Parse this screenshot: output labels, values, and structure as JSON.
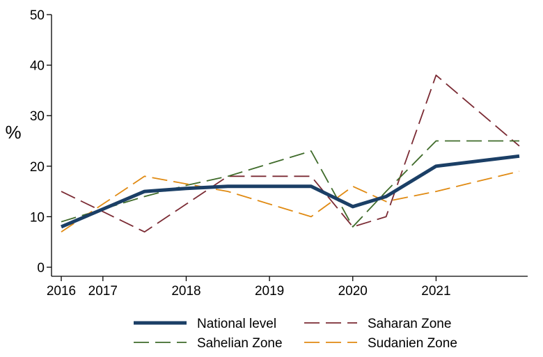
{
  "chart_data": {
    "type": "line",
    "title": "",
    "xlabel": "",
    "ylabel": "%",
    "xlim": [
      2016,
      2021.6
    ],
    "ylim": [
      0,
      50
    ],
    "grid": false,
    "legend_position": "bottom",
    "x_ticks": [
      {
        "value": 2016,
        "label": "2016"
      },
      {
        "value": 2016.5,
        "label": "2017"
      },
      {
        "value": 2017.5,
        "label": "2018"
      },
      {
        "value": 2018.5,
        "label": "2019"
      },
      {
        "value": 2019.5,
        "label": "2020"
      },
      {
        "value": 2020.5,
        "label": "2021"
      }
    ],
    "y_ticks": [
      {
        "value": 0,
        "label": "0"
      },
      {
        "value": 10,
        "label": "10"
      },
      {
        "value": 20,
        "label": "20"
      },
      {
        "value": 30,
        "label": "30"
      },
      {
        "value": 40,
        "label": "40"
      },
      {
        "value": 50,
        "label": "50"
      }
    ],
    "series": [
      {
        "name": "National level",
        "color": "#1b3f66",
        "style": "solid",
        "points": [
          [
            2016,
            8
          ],
          [
            2016.5,
            11.5
          ],
          [
            2017,
            15
          ],
          [
            2017.5,
            15.6
          ],
          [
            2018,
            16
          ],
          [
            2019,
            16
          ],
          [
            2019.5,
            12
          ],
          [
            2019.9,
            14
          ],
          [
            2020.5,
            20
          ],
          [
            2021.5,
            22
          ]
        ]
      },
      {
        "name": "Saharan Zone",
        "color": "#7b2b34",
        "style": "dashed",
        "points": [
          [
            2016,
            15
          ],
          [
            2016.5,
            11
          ],
          [
            2017,
            7
          ],
          [
            2017.5,
            12.5
          ],
          [
            2018,
            18
          ],
          [
            2019,
            18
          ],
          [
            2019.5,
            8
          ],
          [
            2019.9,
            10
          ],
          [
            2020.5,
            38
          ],
          [
            2021.5,
            24
          ]
        ]
      },
      {
        "name": "Sahelian Zone",
        "color": "#3f6b2a",
        "style": "dashed",
        "points": [
          [
            2016,
            9
          ],
          [
            2016.5,
            11.5
          ],
          [
            2017,
            14
          ],
          [
            2017.5,
            16.2
          ],
          [
            2018,
            18
          ],
          [
            2019,
            23
          ],
          [
            2019.5,
            8
          ],
          [
            2019.9,
            15
          ],
          [
            2020.5,
            25
          ],
          [
            2021.5,
            25
          ]
        ]
      },
      {
        "name": "Sudanien Zone",
        "color": "#e08a12",
        "style": "dashed",
        "points": [
          [
            2016,
            7
          ],
          [
            2016.5,
            12.5
          ],
          [
            2017,
            18
          ],
          [
            2017.5,
            16.5
          ],
          [
            2018,
            15
          ],
          [
            2019,
            10
          ],
          [
            2019.5,
            16
          ],
          [
            2019.9,
            13
          ],
          [
            2020.5,
            15
          ],
          [
            2021.5,
            19
          ]
        ]
      }
    ]
  }
}
